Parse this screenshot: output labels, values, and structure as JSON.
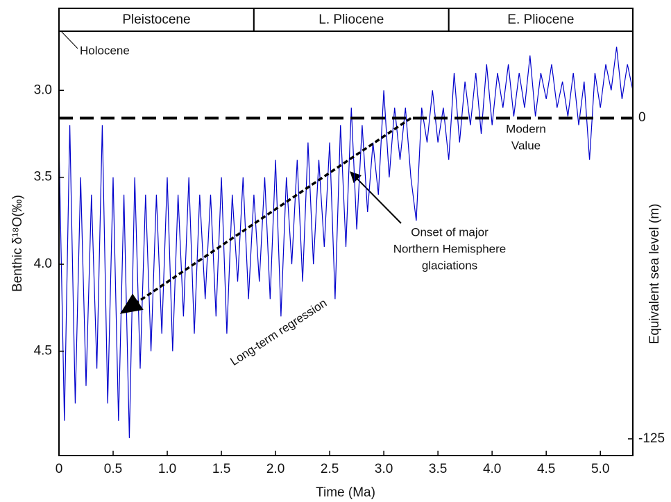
{
  "chart_data": {
    "type": "line",
    "xlabel": "Time (Ma)",
    "ylabel": "Benthic δ¹⁸O(‰)",
    "y2label": "Equivalent sea level (m)",
    "color": "#0000cc",
    "xlim": [
      0,
      5.3
    ],
    "xticks": [
      0,
      0.5,
      {
        "value": 1,
        "label": "1.0"
      },
      1.5,
      {
        "value": 2,
        "label": "2.0"
      },
      2.5,
      {
        "value": 3,
        "label": "3.0"
      },
      3.5,
      {
        "value": 4,
        "label": "4.0"
      },
      4.5,
      {
        "value": 5,
        "label": "5.0"
      }
    ],
    "ylim": [
      5.1,
      2.66
    ],
    "yticks": [
      {
        "value": 3,
        "label": "3.0"
      },
      3.5,
      {
        "value": 4,
        "label": "4.0"
      },
      4.5
    ],
    "y2lim": [
      -131.5,
      33.75
    ],
    "y2ticks": [
      0,
      -125
    ],
    "epochs": [
      {
        "name": "Pleistocene",
        "start": 0,
        "end": 1.8
      },
      {
        "name": "L. Pliocene",
        "start": 1.8,
        "end": 3.6
      },
      {
        "name": "E. Pliocene",
        "start": 3.6,
        "end": 5.3
      }
    ],
    "holocene_label": "Holocene",
    "modern_value": 3.16,
    "modern_label": [
      "Modern",
      "Value"
    ],
    "onset_label": [
      "Onset of major",
      "Northern Hemisphere",
      "glaciations"
    ],
    "regression_label": "Long-term regression",
    "regression": {
      "x": [
        3.25,
        0.6
      ],
      "y": [
        3.16,
        4.27
      ]
    },
    "x": [
      0,
      0.05,
      0.1,
      0.15,
      0.2,
      0.25,
      0.3,
      0.35,
      0.4,
      0.45,
      0.5,
      0.55,
      0.6,
      0.65,
      0.7,
      0.75,
      0.8,
      0.85,
      0.9,
      0.95,
      1.0,
      1.05,
      1.1,
      1.15,
      1.2,
      1.25,
      1.3,
      1.35,
      1.4,
      1.45,
      1.5,
      1.55,
      1.6,
      1.65,
      1.7,
      1.75,
      1.8,
      1.85,
      1.9,
      1.95,
      2.0,
      2.05,
      2.1,
      2.15,
      2.2,
      2.25,
      2.3,
      2.35,
      2.4,
      2.45,
      2.5,
      2.55,
      2.6,
      2.65,
      2.7,
      2.75,
      2.8,
      2.85,
      2.9,
      2.95,
      3.0,
      3.05,
      3.1,
      3.15,
      3.2,
      3.25,
      3.3,
      3.35,
      3.4,
      3.45,
      3.5,
      3.55,
      3.6,
      3.65,
      3.7,
      3.75,
      3.8,
      3.85,
      3.9,
      3.95,
      4.0,
      4.05,
      4.1,
      4.15,
      4.2,
      4.25,
      4.3,
      4.35,
      4.4,
      4.45,
      4.5,
      4.55,
      4.6,
      4.65,
      4.7,
      4.75,
      4.8,
      4.85,
      4.9,
      4.95,
      5.0,
      5.05,
      5.1,
      5.15,
      5.2,
      5.25,
      5.3
    ],
    "values": [
      3.3,
      4.9,
      3.2,
      4.8,
      3.5,
      4.7,
      3.6,
      4.6,
      3.2,
      4.8,
      3.5,
      4.9,
      3.6,
      5.0,
      3.5,
      4.6,
      3.6,
      4.5,
      3.6,
      4.4,
      3.5,
      4.5,
      3.6,
      4.3,
      3.5,
      4.4,
      3.6,
      4.2,
      3.6,
      4.3,
      3.5,
      4.4,
      3.6,
      4.1,
      3.5,
      4.2,
      3.6,
      4.1,
      3.5,
      4.2,
      3.4,
      4.3,
      3.5,
      4.0,
      3.4,
      4.1,
      3.3,
      4.0,
      3.4,
      3.9,
      3.3,
      4.2,
      3.2,
      3.9,
      3.1,
      3.8,
      3.2,
      3.7,
      3.3,
      3.6,
      3.0,
      3.5,
      3.1,
      3.4,
      3.1,
      3.5,
      3.75,
      3.1,
      3.3,
      3.0,
      3.3,
      3.1,
      3.4,
      2.9,
      3.3,
      2.95,
      3.2,
      2.9,
      3.25,
      2.85,
      3.2,
      2.9,
      3.1,
      2.85,
      3.15,
      2.9,
      3.1,
      2.8,
      3.15,
      2.9,
      3.05,
      2.85,
      3.1,
      2.95,
      3.15,
      2.9,
      3.2,
      2.95,
      3.4,
      2.9,
      3.1,
      2.85,
      3.0,
      2.75,
      3.05,
      2.85,
      3.0
    ]
  }
}
